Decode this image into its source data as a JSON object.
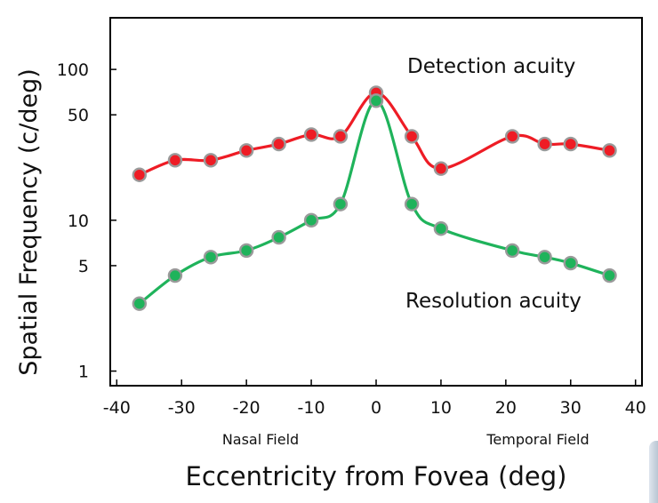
{
  "chart_data": {
    "type": "line",
    "xlabel": "Eccentricity from Fovea (deg)",
    "ylabel": "Spatial Frequency (c/deg)",
    "x_ticks": [
      -40,
      -30,
      -20,
      -10,
      0,
      10,
      20,
      30,
      40
    ],
    "y_ticks": [
      1,
      5,
      10,
      50,
      100
    ],
    "y_scale": "log",
    "xlim": [
      -41,
      41
    ],
    "ylim": [
      0.8,
      220
    ],
    "x_region_labels": [
      "Nasal Field",
      "Temporal Field"
    ],
    "grid": false,
    "series": [
      {
        "name": "Detection acuity",
        "color": "#ee1c25",
        "x": [
          -36.5,
          -31,
          -25.5,
          -20,
          -15,
          -10,
          -5.5,
          0,
          5.5,
          10,
          21,
          26,
          30,
          36
        ],
        "y": [
          20,
          25,
          25,
          29,
          32,
          37,
          36,
          70,
          36,
          22,
          36,
          32,
          32,
          29
        ]
      },
      {
        "name": "Resolution acuity",
        "color": "#1fb35b",
        "x": [
          -36.5,
          -31,
          -25.5,
          -20,
          -15,
          -10,
          -5.5,
          0,
          5.5,
          10,
          21,
          26,
          30,
          36
        ],
        "y": [
          2.8,
          4.3,
          5.7,
          6.3,
          7.7,
          10,
          12.8,
          62,
          12.8,
          8.8,
          6.3,
          5.7,
          5.2,
          4.3
        ]
      }
    ]
  }
}
